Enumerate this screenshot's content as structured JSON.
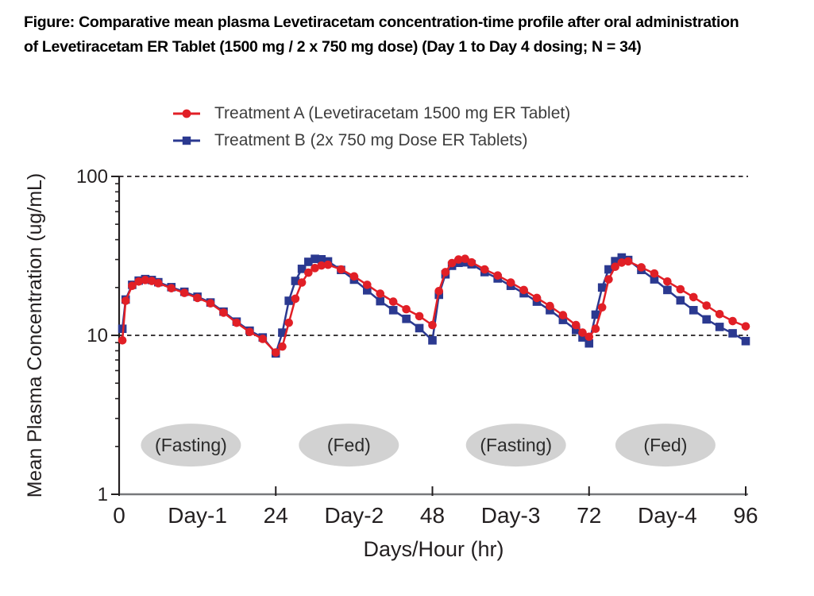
{
  "figure_title": {
    "line1": "Figure: Comparative mean plasma Levetiracetam concentration-time profile after oral administration",
    "line2": "of Levetiracetam ER Tablet (1500 mg / 2 x 750 mg dose) (Day 1 to Day 4 dosing; N = 34)"
  },
  "legend": [
    {
      "label": "Treatment A (Levetiracetam 1500 mg ER Tablet)",
      "color": "#e11f26",
      "marker": "circle"
    },
    {
      "label": "Treatment B (2x 750 mg Dose ER Tablets)",
      "color": "#2b3990",
      "marker": "square"
    }
  ],
  "colors": {
    "treatment_a": "#e11f26",
    "treatment_b": "#2b3990",
    "axis_dark": "#231f20",
    "x_axis_line": "#77787b",
    "dashed_line": "#231f20",
    "ellipse_fill": "#d2d2d2",
    "ellipse_text": "#2b2b2b"
  },
  "chart_data": {
    "type": "line",
    "title": "",
    "xlabel": "Days/Hour (hr)",
    "ylabel": "Mean Plasma Concentration (ug/mL)",
    "y_scale": "log",
    "ylim": [
      1,
      100
    ],
    "xlim": [
      0,
      96
    ],
    "y_ticks": [
      1,
      10,
      100
    ],
    "x_ticks": [
      0,
      24,
      48,
      72,
      96
    ],
    "x_day_labels": [
      "Day-1",
      "Day-2",
      "Day-3",
      "Day-4"
    ],
    "gridlines_dashed_at": [
      10,
      100
    ],
    "legend_position": "top",
    "grid": "off",
    "annotations": [
      {
        "label": "(Fasting)",
        "x": 11.0,
        "y_value": 2.04
      },
      {
        "label": "(Fed)",
        "x": 35.2,
        "y_value": 2.04
      },
      {
        "label": "(Fasting)",
        "x": 60.8,
        "y_value": 2.04
      },
      {
        "label": "(Fed)",
        "x": 83.7,
        "y_value": 2.04
      }
    ],
    "x": [
      0.5,
      1,
      2,
      3,
      4,
      5,
      6,
      8,
      10,
      12,
      14,
      16,
      18,
      20,
      22,
      24,
      25,
      26,
      27,
      28,
      29,
      30,
      31,
      32,
      34,
      36,
      38,
      40,
      42,
      44,
      46,
      48,
      49,
      50,
      51,
      52,
      53,
      54,
      56,
      58,
      60,
      62,
      64,
      66,
      68,
      70,
      71,
      72,
      73,
      74,
      75,
      76,
      77,
      78,
      80,
      82,
      84,
      86,
      88,
      90,
      92,
      94,
      96
    ],
    "series": [
      {
        "name": "Treatment A (Levetiracetam 1500 mg ER Tablet)",
        "color": "#e11f26",
        "marker": "circle",
        "values": [
          9.3,
          16.5,
          20.5,
          21.8,
          22.3,
          22.0,
          21.3,
          19.8,
          18.5,
          17.2,
          15.9,
          13.9,
          12.0,
          10.5,
          9.5,
          7.8,
          8.5,
          12.0,
          17.0,
          21.5,
          24.8,
          26.5,
          27.5,
          27.8,
          26.0,
          23.5,
          20.8,
          18.3,
          16.3,
          14.6,
          13.2,
          11.6,
          19.0,
          25.0,
          28.5,
          30.0,
          30.3,
          28.8,
          26.0,
          23.8,
          21.5,
          19.3,
          17.2,
          15.3,
          13.4,
          11.6,
          10.4,
          9.8,
          11.0,
          15.0,
          22.5,
          27.0,
          28.7,
          29.2,
          26.8,
          24.5,
          21.8,
          19.5,
          17.4,
          15.4,
          13.6,
          12.3,
          11.4
        ]
      },
      {
        "name": "Treatment B (2x 750 mg Dose ER Tablets)",
        "color": "#2b3990",
        "marker": "square",
        "values": [
          11.0,
          16.8,
          20.8,
          22.1,
          22.6,
          22.3,
          21.6,
          20.1,
          18.8,
          17.5,
          16.1,
          14.1,
          12.2,
          10.7,
          9.7,
          7.7,
          10.4,
          16.5,
          22.0,
          26.2,
          29.0,
          30.3,
          30.1,
          29.2,
          25.8,
          22.4,
          19.2,
          16.4,
          14.4,
          12.7,
          11.1,
          9.3,
          18.0,
          24.2,
          27.4,
          28.6,
          28.8,
          28.0,
          25.0,
          22.8,
          20.5,
          18.4,
          16.3,
          14.4,
          12.5,
          10.8,
          9.7,
          8.9,
          13.5,
          20.0,
          26.0,
          29.3,
          30.9,
          29.8,
          25.8,
          22.5,
          19.3,
          16.6,
          14.4,
          12.6,
          11.3,
          10.3,
          9.2
        ]
      }
    ]
  }
}
